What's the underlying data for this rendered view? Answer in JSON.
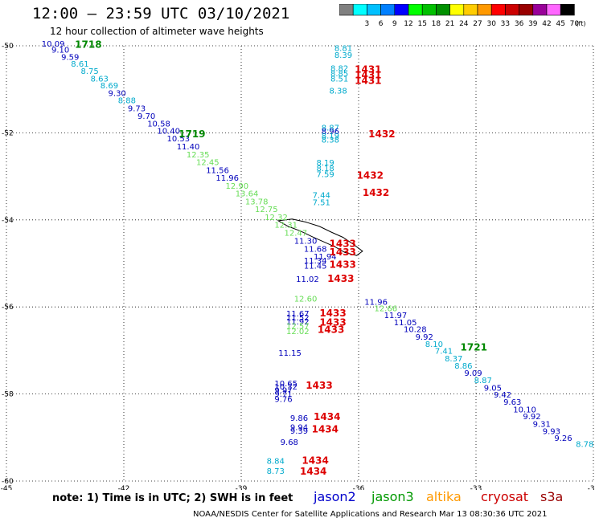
{
  "title": "12:00 – 23:59 UTC 03/10/2021",
  "subtitle": "12 hour collection of altimeter wave heights",
  "note": "note:  1) Time is in UTC; 2) SWH is in feet",
  "credit": "NOAA/NESDIS Center for Satellite Applications and Research    Mar 13 08:30:36 UTC 2021",
  "legend": {
    "unit_label": "(ft)",
    "bins": [
      {
        "label": "",
        "color": "#808080"
      },
      {
        "label": "3",
        "color": "#00ffff"
      },
      {
        "label": "6",
        "color": "#00c0ff"
      },
      {
        "label": "9",
        "color": "#0080ff"
      },
      {
        "label": "12",
        "color": "#0000ff"
      },
      {
        "label": "15",
        "color": "#00ff00"
      },
      {
        "label": "18",
        "color": "#00c000"
      },
      {
        "label": "21",
        "color": "#009000"
      },
      {
        "label": "24",
        "color": "#ffff00"
      },
      {
        "label": "27",
        "color": "#ffcc00"
      },
      {
        "label": "30",
        "color": "#ff9900"
      },
      {
        "label": "33",
        "color": "#ff0000"
      },
      {
        "label": "36",
        "color": "#cc0000"
      },
      {
        "label": "39",
        "color": "#990000"
      },
      {
        "label": "42",
        "color": "#990099"
      },
      {
        "label": "45",
        "color": "#ff66ff"
      },
      {
        "label": "70",
        "color": "#000000"
      }
    ]
  },
  "satellites": [
    {
      "name": "jason2",
      "color": "#0000cc"
    },
    {
      "name": "jason3",
      "color": "#009900"
    },
    {
      "name": "altika",
      "color": "#ff9900"
    },
    {
      "name": "cryosat",
      "color": "#cc0000"
    },
    {
      "name": "s3a",
      "color": "#990000"
    }
  ],
  "map": {
    "lon_range": [
      -45,
      -30
    ],
    "lat_range": [
      -60,
      -50
    ],
    "lon_ticks": [
      "-45",
      "-42",
      "-39",
      "-36",
      "-33",
      "-30"
    ],
    "lat_ticks": [
      "-50",
      "-52",
      "-54",
      "-56",
      "-58",
      "-60"
    ],
    "grid": "dotted"
  },
  "colors": {
    "cyan": "#00aacc",
    "blue": "#0000bb",
    "green": "#66dd55",
    "dkgreen": "#008800",
    "red": "#dd0000"
  },
  "values": [
    {
      "t": "10.09",
      "lon": -44.1,
      "lat": -50.02,
      "c": "blue"
    },
    {
      "t": "9.10",
      "lon": -43.85,
      "lat": -50.16,
      "c": "blue"
    },
    {
      "t": "9.59",
      "lon": -43.6,
      "lat": -50.32,
      "c": "blue"
    },
    {
      "t": "8.61",
      "lon": -43.35,
      "lat": -50.48,
      "c": "cyan"
    },
    {
      "t": "8.75",
      "lon": -43.1,
      "lat": -50.65,
      "c": "cyan"
    },
    {
      "t": "8.63",
      "lon": -42.85,
      "lat": -50.82,
      "c": "cyan"
    },
    {
      "t": "8.69",
      "lon": -42.6,
      "lat": -50.98,
      "c": "cyan"
    },
    {
      "t": "9.30",
      "lon": -42.4,
      "lat": -51.15,
      "c": "blue"
    },
    {
      "t": "8.88",
      "lon": -42.15,
      "lat": -51.32,
      "c": "cyan"
    },
    {
      "t": "9.73",
      "lon": -41.9,
      "lat": -51.5,
      "c": "blue"
    },
    {
      "t": "9.70",
      "lon": -41.65,
      "lat": -51.68,
      "c": "blue"
    },
    {
      "t": "10.58",
      "lon": -41.4,
      "lat": -51.85,
      "c": "blue"
    },
    {
      "t": "10.40",
      "lon": -41.15,
      "lat": -52.02,
      "c": "blue"
    },
    {
      "t": "10.53",
      "lon": -40.9,
      "lat": -52.2,
      "c": "blue"
    },
    {
      "t": "11.40",
      "lon": -40.65,
      "lat": -52.38,
      "c": "blue"
    },
    {
      "t": "12.35",
      "lon": -40.4,
      "lat": -52.56,
      "c": "green"
    },
    {
      "t": "12.45",
      "lon": -40.15,
      "lat": -52.74,
      "c": "green"
    },
    {
      "t": "11.56",
      "lon": -39.9,
      "lat": -52.92,
      "c": "blue"
    },
    {
      "t": "11.96",
      "lon": -39.65,
      "lat": -53.1,
      "c": "blue"
    },
    {
      "t": "12.90",
      "lon": -39.4,
      "lat": -53.28,
      "c": "green"
    },
    {
      "t": "13.64",
      "lon": -39.15,
      "lat": -53.46,
      "c": "green"
    },
    {
      "t": "13.78",
      "lon": -38.9,
      "lat": -53.64,
      "c": "green"
    },
    {
      "t": "12.75",
      "lon": -38.65,
      "lat": -53.82,
      "c": "green"
    },
    {
      "t": "12.32",
      "lon": -38.4,
      "lat": -54.0,
      "c": "green"
    },
    {
      "t": "12.31",
      "lon": -38.15,
      "lat": -54.18,
      "c": "green"
    },
    {
      "t": "12.47",
      "lon": -37.9,
      "lat": -54.36,
      "c": "green"
    },
    {
      "t": "11.30",
      "lon": -37.65,
      "lat": -54.55,
      "c": "blue"
    },
    {
      "t": "11.68",
      "lon": -37.4,
      "lat": -54.73,
      "c": "blue"
    },
    {
      "t": "11.94",
      "lon": -37.15,
      "lat": -54.91,
      "c": "blue"
    },
    {
      "t": "11.96",
      "lon": -35.85,
      "lat": -55.95,
      "c": "blue"
    },
    {
      "t": "12.66",
      "lon": -35.6,
      "lat": -56.1,
      "c": "green"
    },
    {
      "t": "11.97",
      "lon": -35.35,
      "lat": -56.25,
      "c": "blue"
    },
    {
      "t": "11.05",
      "lon": -35.1,
      "lat": -56.42,
      "c": "blue"
    },
    {
      "t": "10.28",
      "lon": -34.85,
      "lat": -56.58,
      "c": "blue"
    },
    {
      "t": "9.92",
      "lon": -34.55,
      "lat": -56.75,
      "c": "blue"
    },
    {
      "t": "8.10",
      "lon": -34.3,
      "lat": -56.92,
      "c": "cyan"
    },
    {
      "t": "7.41",
      "lon": -34.05,
      "lat": -57.08,
      "c": "cyan"
    },
    {
      "t": "8.37",
      "lon": -33.8,
      "lat": -57.25,
      "c": "cyan"
    },
    {
      "t": "8.86",
      "lon": -33.55,
      "lat": -57.42,
      "c": "cyan"
    },
    {
      "t": "9.09",
      "lon": -33.3,
      "lat": -57.58,
      "c": "blue"
    },
    {
      "t": "8.87",
      "lon": -33.05,
      "lat": -57.75,
      "c": "cyan"
    },
    {
      "t": "9.05",
      "lon": -32.8,
      "lat": -57.92,
      "c": "blue"
    },
    {
      "t": "9.42",
      "lon": -32.55,
      "lat": -58.08,
      "c": "blue"
    },
    {
      "t": "9.63",
      "lon": -32.3,
      "lat": -58.25,
      "c": "blue"
    },
    {
      "t": "10.10",
      "lon": -32.05,
      "lat": -58.42,
      "c": "blue"
    },
    {
      "t": "9.92",
      "lon": -31.8,
      "lat": -58.58,
      "c": "blue"
    },
    {
      "t": "9.31",
      "lon": -31.55,
      "lat": -58.75,
      "c": "blue"
    },
    {
      "t": "9.93",
      "lon": -31.3,
      "lat": -58.92,
      "c": "blue"
    },
    {
      "t": "9.26",
      "lon": -31.0,
      "lat": -59.08,
      "c": "blue"
    },
    {
      "t": "8.78",
      "lon": -30.45,
      "lat": -59.22,
      "c": "cyan"
    },
    {
      "t": "8.81",
      "lon": -36.62,
      "lat": -50.12,
      "c": "cyan"
    },
    {
      "t": "8.39",
      "lon": -36.62,
      "lat": -50.28,
      "c": "cyan"
    },
    {
      "t": "8.82",
      "lon": -36.72,
      "lat": -50.58,
      "c": "cyan"
    },
    {
      "t": "8.85",
      "lon": -36.72,
      "lat": -50.7,
      "c": "cyan"
    },
    {
      "t": "8.51",
      "lon": -36.72,
      "lat": -50.82,
      "c": "cyan"
    },
    {
      "t": "8.38",
      "lon": -36.75,
      "lat": -51.1,
      "c": "cyan"
    },
    {
      "t": "8.87",
      "lon": -36.95,
      "lat": -51.95,
      "c": "cyan"
    },
    {
      "t": "8.96",
      "lon": -36.95,
      "lat": -52.03,
      "c": "blue"
    },
    {
      "t": "8.19",
      "lon": -36.95,
      "lat": -52.13,
      "c": "cyan"
    },
    {
      "t": "8.38",
      "lon": -36.95,
      "lat": -52.22,
      "c": "cyan"
    },
    {
      "t": "8.19",
      "lon": -37.08,
      "lat": -52.75,
      "c": "cyan"
    },
    {
      "t": "8.18",
      "lon": -37.08,
      "lat": -52.88,
      "c": "cyan"
    },
    {
      "t": "7.59",
      "lon": -37.08,
      "lat": -53.02,
      "c": "cyan"
    },
    {
      "t": "7.44",
      "lon": -37.18,
      "lat": -53.5,
      "c": "cyan"
    },
    {
      "t": "7.51",
      "lon": -37.18,
      "lat": -53.66,
      "c": "cyan"
    },
    {
      "t": "11.34",
      "lon": -37.4,
      "lat": -55.0,
      "c": "blue"
    },
    {
      "t": "11.45",
      "lon": -37.4,
      "lat": -55.12,
      "c": "blue"
    },
    {
      "t": "11.02",
      "lon": -37.6,
      "lat": -55.42,
      "c": "blue"
    },
    {
      "t": "12.60",
      "lon": -37.65,
      "lat": -55.88,
      "c": "green"
    },
    {
      "t": "11.67",
      "lon": -37.85,
      "lat": -56.22,
      "c": "blue"
    },
    {
      "t": "11.52",
      "lon": -37.85,
      "lat": -56.31,
      "c": "blue"
    },
    {
      "t": "11.92",
      "lon": -37.85,
      "lat": -56.4,
      "c": "blue"
    },
    {
      "t": "12.57",
      "lon": -37.85,
      "lat": -56.5,
      "c": "green"
    },
    {
      "t": "12.02",
      "lon": -37.85,
      "lat": -56.62,
      "c": "green"
    },
    {
      "t": "11.15",
      "lon": -38.05,
      "lat": -57.12,
      "c": "blue"
    },
    {
      "t": "10.65",
      "lon": -38.15,
      "lat": -57.82,
      "c": "blue"
    },
    {
      "t": "10.32",
      "lon": -38.15,
      "lat": -57.9,
      "c": "blue"
    },
    {
      "t": "9.97",
      "lon": -38.15,
      "lat": -57.98,
      "c": "blue"
    },
    {
      "t": "9.71",
      "lon": -38.15,
      "lat": -58.06,
      "c": "blue"
    },
    {
      "t": "9.76",
      "lon": -38.15,
      "lat": -58.18,
      "c": "blue"
    },
    {
      "t": "9.86",
      "lon": -37.75,
      "lat": -58.62,
      "c": "blue"
    },
    {
      "t": "9.94",
      "lon": -37.75,
      "lat": -58.83,
      "c": "blue"
    },
    {
      "t": "9.39",
      "lon": -37.75,
      "lat": -58.91,
      "c": "blue"
    },
    {
      "t": "9.68",
      "lon": -38.0,
      "lat": -59.17,
      "c": "blue"
    },
    {
      "t": "8.84",
      "lon": -38.35,
      "lat": -59.6,
      "c": "cyan"
    },
    {
      "t": "8.73",
      "lon": -38.35,
      "lat": -59.83,
      "c": "cyan"
    }
  ],
  "times": [
    {
      "t": "1718",
      "lon": -43.25,
      "lat": -50.05,
      "c": "dkgreen"
    },
    {
      "t": "1719",
      "lon": -40.6,
      "lat": -52.1,
      "c": "dkgreen"
    },
    {
      "t": "1721",
      "lon": -33.4,
      "lat": -57.0,
      "c": "dkgreen"
    },
    {
      "t": "1431",
      "lon": -36.1,
      "lat": -50.62,
      "c": "red"
    },
    {
      "t": "1431",
      "lon": -36.1,
      "lat": -50.75,
      "c": "red"
    },
    {
      "t": "1431",
      "lon": -36.1,
      "lat": -50.88,
      "c": "red"
    },
    {
      "t": "1432",
      "lon": -35.75,
      "lat": -52.1,
      "c": "red"
    },
    {
      "t": "1432",
      "lon": -36.05,
      "lat": -53.05,
      "c": "red"
    },
    {
      "t": "1432",
      "lon": -35.9,
      "lat": -53.45,
      "c": "red"
    },
    {
      "t": "1433",
      "lon": -36.75,
      "lat": -54.62,
      "c": "red"
    },
    {
      "t": "1433",
      "lon": -36.75,
      "lat": -54.82,
      "c": "red"
    },
    {
      "t": "1433",
      "lon": -36.75,
      "lat": -55.1,
      "c": "red"
    },
    {
      "t": "1433",
      "lon": -36.8,
      "lat": -55.42,
      "c": "red"
    },
    {
      "t": "1433",
      "lon": -37.0,
      "lat": -56.22,
      "c": "red"
    },
    {
      "t": "1433",
      "lon": -37.0,
      "lat": -56.43,
      "c": "red"
    },
    {
      "t": "1433",
      "lon": -37.05,
      "lat": -56.6,
      "c": "red"
    },
    {
      "t": "1433",
      "lon": -37.35,
      "lat": -57.88,
      "c": "red"
    },
    {
      "t": "1434",
      "lon": -37.15,
      "lat": -58.6,
      "c": "red"
    },
    {
      "t": "1434",
      "lon": -37.2,
      "lat": -58.88,
      "c": "red"
    },
    {
      "t": "1434",
      "lon": -37.45,
      "lat": -59.6,
      "c": "red"
    },
    {
      "t": "1434",
      "lon": -37.5,
      "lat": -59.85,
      "c": "red"
    }
  ]
}
